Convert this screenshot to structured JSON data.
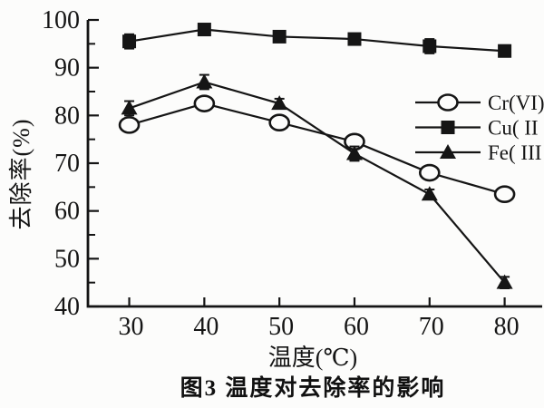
{
  "chart_data": {
    "type": "line",
    "title": "图3  温度对去除率的影响",
    "xlabel": "温度(℃)",
    "ylabel": "去除率(%)",
    "x": [
      30,
      40,
      50,
      60,
      70,
      80
    ],
    "xticks": [
      30,
      40,
      50,
      60,
      70,
      80
    ],
    "yticks": [
      40,
      50,
      60,
      70,
      80,
      90,
      100
    ],
    "y_minor_tick_step": 5,
    "xlim": [
      24.5,
      85
    ],
    "ylim": [
      40,
      100
    ],
    "grid": false,
    "legend_position": "right-middle",
    "ink_color": "#151515",
    "series": [
      {
        "name": "Cr(VI)",
        "marker": "open-circle",
        "values": [
          78,
          82.5,
          78.5,
          74.5,
          68,
          63.5
        ],
        "errors": [
          1.0,
          1.0,
          0.8,
          1.5,
          1.2,
          0.8
        ]
      },
      {
        "name": "Cu( II )",
        "marker": "filled-square",
        "values": [
          95.5,
          98,
          96.5,
          96,
          94.5,
          93.5
        ],
        "errors": [
          1.5,
          1.0,
          0.8,
          0.8,
          1.5,
          1.2
        ]
      },
      {
        "name": "Fe( III )",
        "marker": "filled-triangle",
        "values": [
          81.5,
          87,
          82.5,
          72,
          63.5,
          45
        ],
        "errors": [
          1.5,
          1.5,
          1.0,
          1.5,
          1.0,
          1.2
        ]
      }
    ]
  }
}
